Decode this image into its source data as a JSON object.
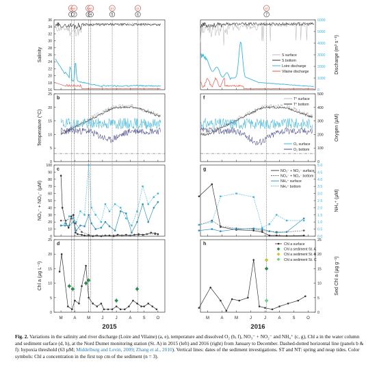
{
  "figure": {
    "caption": {
      "label": "Fig. 2.",
      "part1": "Variations in the salinity and river discharge (Loire and Vilaine) (a, e), temperature and dissolved O₂ (b, f), NO₃⁻ + NO₂⁻ and NH₄⁺ (c, g), Chl a in the water column and sediment surface (d, h), at the Nord Dumet monitoring station (St. A) in 2015 (left) and 2016 (right) from January to December. Dashed-dotted horizontal line (panels b & f): hypoxia threshold (63 µM; ",
      "ref1": "Middelburg and Levin, 2009",
      "sep": "; ",
      "ref2": "Zhang et al., 2010",
      "part2": "). Vertical lines: dates of the sediment investigations. ST and NT: spring and neap tides. Color symbols: Chl a concentration in the first top cm of the sediment (n = 3)."
    },
    "years": [
      "2015",
      "2016"
    ],
    "months": [
      "M",
      "A",
      "M",
      "J",
      "J",
      "A",
      "S",
      "O"
    ],
    "tides_2015": [
      "ST",
      "NT",
      "ST",
      "NT",
      "ST",
      "ST"
    ],
    "tides_2016": [
      "ST"
    ],
    "investigations_2015": [
      "1",
      "2",
      "3",
      "4",
      "5",
      "6"
    ],
    "investigations_2016": [
      "7"
    ],
    "panel_letters": [
      "a",
      "b",
      "c",
      "d",
      "e",
      "f",
      "g",
      "h"
    ],
    "axis_labels": {
      "salinity": "Salinity",
      "discharge": "Discharge (m³ s⁻¹)",
      "temperature": "Temperature (°C)",
      "oxygen": "Oxygen (µM)",
      "nox": "NO₃⁻ + NO₂⁻ (µM)",
      "nh4": "NH₄⁺ (µM)",
      "chla": "Chl a (µg L⁻¹)",
      "sedchla": "Sed Chl a (µg g⁻¹)"
    },
    "ticks": {
      "salinity": [
        "16",
        "18",
        "20",
        "22",
        "24",
        "26",
        "28",
        "30",
        "32",
        "34",
        "36"
      ],
      "discharge": [
        "0",
        "1000",
        "2000",
        "3000",
        "4000",
        "5000",
        "6000"
      ],
      "temperature": [
        "0",
        "5",
        "10",
        "15",
        "20",
        "25"
      ],
      "oxygen": [
        "0",
        "100",
        "200",
        "300",
        "400",
        "500"
      ],
      "nox": [
        "0",
        "10",
        "20",
        "30",
        "40",
        "50",
        "60",
        "70",
        "80",
        "90",
        "100"
      ],
      "nh4": [
        "0.0",
        "0.5",
        "1.0",
        "1.5",
        "2.0",
        "2.5",
        "3.0",
        "3.5",
        "4.0",
        "4.5",
        "5.0"
      ],
      "chla": [
        "0",
        "5",
        "10",
        "15",
        "20",
        "25"
      ],
      "sedchla": [
        "0",
        "5",
        "10",
        "15",
        "20",
        "25"
      ]
    },
    "legends": {
      "e": [
        "S surface",
        "S bottom",
        "Loire discharge",
        "Vilaine discharge"
      ],
      "f_temp": [
        "T° surface",
        "T° bottom"
      ],
      "f_oxy": [
        "O₂ surface",
        "O₂ bottom"
      ],
      "g": [
        "NO₃⁻ + NO₂⁻ surface",
        "NO₃⁻ + NO₂⁻ bottom",
        "NH₄⁺ surface",
        "NH₄⁺ bottom"
      ],
      "h": [
        "Chl a surface",
        "Chl a sediment St. A",
        "Chl a sediment St. B",
        "Chl a sediment St. C"
      ]
    },
    "colors": {
      "cyan": "#3ab4dc",
      "red": "#e35a4a",
      "green": "#2f8a4e",
      "yellow": "#c9c23a",
      "grey": "#b8b8b8",
      "darkblue": "#474a8c"
    }
  },
  "chart_data": [
    {
      "panel": "c",
      "type": "line",
      "year": "2015",
      "series": [
        {
          "name": "NO₃⁻ + NO₂⁻ surface",
          "x": [
            3.0,
            3.1,
            3.35,
            3.55,
            3.75,
            3.9,
            4.05,
            4.2,
            4.5,
            4.7,
            5.0,
            5.3,
            5.6,
            5.9,
            6.2,
            6.5,
            6.8,
            7.1,
            7.4,
            7.7,
            8.0,
            8.3,
            8.6,
            8.9,
            9.2,
            9.5,
            9.8,
            10.0
          ],
          "values": [
            85,
            40,
            18,
            12,
            28,
            30,
            5,
            3,
            2,
            1,
            1,
            0,
            1,
            0,
            1,
            1,
            0,
            2,
            1,
            2,
            1,
            2,
            3,
            2,
            3,
            5,
            4,
            3
          ]
        }
      ]
    },
    {
      "panel": "g",
      "type": "line",
      "year": "2016",
      "series": [
        {
          "name": "NO₃⁻ + NO₂⁻ surface",
          "x": [
            2.4,
            3.3,
            3.9,
            5.0,
            6.2,
            6.8,
            7.3,
            7.8,
            8.5,
            9.7
          ],
          "values": [
            56,
            73,
            13,
            9,
            8,
            6,
            1,
            1,
            0.5,
            1
          ]
        }
      ]
    },
    {
      "panel": "d",
      "type": "line",
      "year": "2015",
      "series": [
        {
          "name": "Chl a surface",
          "x": [
            2.9,
            3.05,
            3.5,
            3.8,
            4.0,
            4.3,
            4.5,
            4.8,
            5.0,
            5.3,
            5.6,
            5.9,
            6.1,
            6.4,
            6.7,
            7.0,
            7.3,
            7.6,
            7.9,
            8.2,
            8.5,
            8.8,
            9.0,
            9.3,
            9.6,
            9.9
          ],
          "values": [
            14,
            20,
            2,
            1,
            4,
            3,
            9,
            16,
            5,
            3,
            2,
            3,
            1,
            1,
            1,
            2,
            1,
            1,
            2,
            4,
            3,
            2,
            2,
            3,
            2,
            1
          ]
        },
        {
          "name": "Chl a sediment St. A",
          "x": [
            3.6,
            3.85,
            4.8,
            5.0,
            7.0,
            8.5
          ],
          "values": [
            9,
            8,
            10,
            11,
            4,
            8
          ]
        }
      ]
    },
    {
      "panel": "h",
      "type": "line",
      "year": "2016",
      "series": [
        {
          "name": "Chl a surface",
          "x": [
            2.4,
            3.2,
            3.9,
            4.3,
            4.7,
            5.2,
            5.8,
            6.2,
            6.6,
            7.0,
            7.5,
            8.0,
            8.6,
            9.3,
            9.8
          ],
          "values": [
            1.5,
            8.5,
            4,
            0.5,
            4.5,
            4,
            5,
            18,
            2,
            1.5,
            1,
            2,
            3,
            4,
            5.5
          ]
        },
        {
          "name": "Chl a sediment St. A",
          "x": [
            7.1
          ],
          "values": [
            15
          ]
        },
        {
          "name": "Chl a sediment St. B",
          "x": [
            7.1
          ],
          "values": [
            18
          ]
        },
        {
          "name": "Chl a sediment St. C",
          "x": [
            7.1
          ],
          "values": [
            4
          ]
        }
      ]
    }
  ]
}
